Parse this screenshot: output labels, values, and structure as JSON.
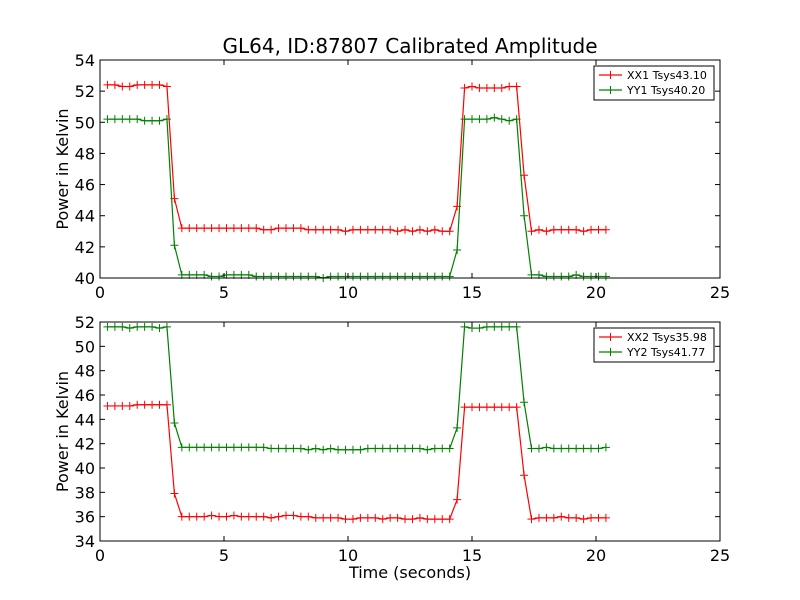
{
  "figure": {
    "title": "GL64, ID:87807 Calibrated Amplitude",
    "xlabel": "Time (seconds)"
  },
  "chart_data": [
    {
      "type": "line",
      "ylabel": "Power in Kelvin",
      "xlim": [
        0,
        25
      ],
      "ylim": [
        40,
        54
      ],
      "xticks": [
        0,
        5,
        10,
        15,
        20,
        25
      ],
      "yticks": [
        40,
        42,
        44,
        46,
        48,
        50,
        52,
        54
      ],
      "legend_placement": "top-right",
      "series": [
        {
          "name": "XX1 Tsys43.10",
          "color": "#ff0000",
          "x": [
            0.3,
            0.6,
            0.9,
            1.2,
            1.5,
            1.8,
            2.1,
            2.4,
            2.7,
            3.0,
            3.3,
            3.6,
            3.9,
            4.2,
            4.5,
            4.8,
            5.1,
            5.4,
            5.7,
            6.0,
            6.3,
            6.6,
            6.9,
            7.2,
            7.5,
            7.8,
            8.1,
            8.4,
            8.7,
            9.0,
            9.3,
            9.6,
            9.9,
            10.2,
            10.5,
            10.8,
            11.1,
            11.4,
            11.7,
            12.0,
            12.3,
            12.6,
            12.9,
            13.2,
            13.5,
            13.8,
            14.1,
            14.4,
            14.7,
            15.0,
            15.3,
            15.6,
            15.9,
            16.2,
            16.5,
            16.8,
            17.1,
            17.4,
            17.7,
            18.0,
            18.3,
            18.6,
            18.9,
            19.2,
            19.5,
            19.8,
            20.1,
            20.4
          ],
          "y": [
            52.4,
            52.4,
            52.3,
            52.3,
            52.4,
            52.4,
            52.4,
            52.4,
            52.3,
            45.1,
            43.2,
            43.2,
            43.2,
            43.2,
            43.2,
            43.2,
            43.2,
            43.2,
            43.2,
            43.2,
            43.2,
            43.1,
            43.1,
            43.2,
            43.2,
            43.2,
            43.2,
            43.1,
            43.1,
            43.1,
            43.1,
            43.1,
            43.0,
            43.1,
            43.1,
            43.1,
            43.1,
            43.1,
            43.1,
            43.0,
            43.1,
            43.0,
            43.1,
            43.0,
            43.1,
            43.0,
            43.0,
            44.6,
            52.2,
            52.3,
            52.2,
            52.2,
            52.2,
            52.2,
            52.3,
            52.3,
            46.6,
            43.0,
            43.1,
            43.0,
            43.1,
            43.1,
            43.1,
            43.1,
            43.0,
            43.1,
            43.1,
            43.1
          ]
        },
        {
          "name": "YY1 Tsys40.20",
          "color": "#008000",
          "x": [
            0.3,
            0.6,
            0.9,
            1.2,
            1.5,
            1.8,
            2.1,
            2.4,
            2.7,
            3.0,
            3.3,
            3.6,
            3.9,
            4.2,
            4.5,
            4.8,
            5.1,
            5.4,
            5.7,
            6.0,
            6.3,
            6.6,
            6.9,
            7.2,
            7.5,
            7.8,
            8.1,
            8.4,
            8.7,
            9.0,
            9.3,
            9.6,
            9.9,
            10.2,
            10.5,
            10.8,
            11.1,
            11.4,
            11.7,
            12.0,
            12.3,
            12.6,
            12.9,
            13.2,
            13.5,
            13.8,
            14.1,
            14.4,
            14.7,
            15.0,
            15.3,
            15.6,
            15.9,
            16.2,
            16.5,
            16.8,
            17.1,
            17.4,
            17.7,
            18.0,
            18.3,
            18.6,
            18.9,
            19.2,
            19.5,
            19.8,
            20.1,
            20.4
          ],
          "y": [
            50.2,
            50.2,
            50.2,
            50.2,
            50.2,
            50.1,
            50.1,
            50.1,
            50.2,
            42.1,
            40.2,
            40.2,
            40.2,
            40.2,
            40.1,
            40.1,
            40.2,
            40.2,
            40.2,
            40.2,
            40.1,
            40.1,
            40.1,
            40.1,
            40.1,
            40.1,
            40.1,
            40.1,
            40.1,
            40.0,
            40.1,
            40.1,
            40.1,
            40.1,
            40.1,
            40.1,
            40.1,
            40.1,
            40.1,
            40.1,
            40.1,
            40.1,
            40.1,
            40.1,
            40.1,
            40.1,
            40.1,
            41.8,
            50.2,
            50.2,
            50.2,
            50.2,
            50.3,
            50.2,
            50.1,
            50.2,
            44.0,
            40.2,
            40.2,
            40.1,
            40.1,
            40.1,
            40.1,
            40.2,
            40.1,
            40.1,
            40.1,
            40.1
          ]
        }
      ]
    },
    {
      "type": "line",
      "ylabel": "Power in Kelvin",
      "xlim": [
        0,
        25
      ],
      "ylim": [
        34,
        52
      ],
      "xticks": [
        0,
        5,
        10,
        15,
        20,
        25
      ],
      "yticks": [
        34,
        36,
        38,
        40,
        42,
        44,
        46,
        48,
        50,
        52
      ],
      "legend_placement": "top-right",
      "series": [
        {
          "name": "XX2 Tsys35.98",
          "color": "#ff0000",
          "x": [
            0.3,
            0.6,
            0.9,
            1.2,
            1.5,
            1.8,
            2.1,
            2.4,
            2.7,
            3.0,
            3.3,
            3.6,
            3.9,
            4.2,
            4.5,
            4.8,
            5.1,
            5.4,
            5.7,
            6.0,
            6.3,
            6.6,
            6.9,
            7.2,
            7.5,
            7.8,
            8.1,
            8.4,
            8.7,
            9.0,
            9.3,
            9.6,
            9.9,
            10.2,
            10.5,
            10.8,
            11.1,
            11.4,
            11.7,
            12.0,
            12.3,
            12.6,
            12.9,
            13.2,
            13.5,
            13.8,
            14.1,
            14.4,
            14.7,
            15.0,
            15.3,
            15.6,
            15.9,
            16.2,
            16.5,
            16.8,
            17.1,
            17.4,
            17.7,
            18.0,
            18.3,
            18.6,
            18.9,
            19.2,
            19.5,
            19.8,
            20.1,
            20.4
          ],
          "y": [
            45.1,
            45.1,
            45.1,
            45.1,
            45.2,
            45.2,
            45.2,
            45.2,
            45.2,
            37.9,
            36.0,
            36.0,
            36.0,
            36.0,
            36.1,
            36.0,
            36.0,
            36.1,
            36.0,
            36.0,
            36.0,
            36.0,
            35.9,
            36.0,
            36.1,
            36.1,
            36.0,
            36.0,
            35.9,
            35.9,
            35.9,
            35.9,
            35.8,
            35.8,
            35.9,
            35.9,
            35.9,
            35.8,
            35.9,
            35.9,
            35.8,
            35.8,
            35.9,
            35.8,
            35.8,
            35.8,
            35.8,
            37.4,
            45.0,
            45.0,
            45.0,
            45.0,
            45.0,
            45.0,
            45.0,
            45.0,
            39.4,
            35.8,
            35.9,
            35.9,
            35.9,
            36.0,
            35.9,
            35.9,
            35.8,
            35.9,
            35.9,
            35.9
          ]
        },
        {
          "name": "YY2 Tsys41.77",
          "color": "#008000",
          "x": [
            0.3,
            0.6,
            0.9,
            1.2,
            1.5,
            1.8,
            2.1,
            2.4,
            2.7,
            3.0,
            3.3,
            3.6,
            3.9,
            4.2,
            4.5,
            4.8,
            5.1,
            5.4,
            5.7,
            6.0,
            6.3,
            6.6,
            6.9,
            7.2,
            7.5,
            7.8,
            8.1,
            8.4,
            8.7,
            9.0,
            9.3,
            9.6,
            9.9,
            10.2,
            10.5,
            10.8,
            11.1,
            11.4,
            11.7,
            12.0,
            12.3,
            12.6,
            12.9,
            13.2,
            13.5,
            13.8,
            14.1,
            14.4,
            14.7,
            15.0,
            15.3,
            15.6,
            15.9,
            16.2,
            16.5,
            16.8,
            17.1,
            17.4,
            17.7,
            18.0,
            18.3,
            18.6,
            18.9,
            19.2,
            19.5,
            19.8,
            20.1,
            20.4
          ],
          "y": [
            51.6,
            51.6,
            51.6,
            51.5,
            51.6,
            51.6,
            51.6,
            51.5,
            51.6,
            43.7,
            41.7,
            41.7,
            41.7,
            41.7,
            41.7,
            41.7,
            41.7,
            41.7,
            41.7,
            41.7,
            41.7,
            41.7,
            41.6,
            41.6,
            41.6,
            41.6,
            41.6,
            41.5,
            41.6,
            41.5,
            41.6,
            41.5,
            41.5,
            41.5,
            41.5,
            41.6,
            41.6,
            41.6,
            41.6,
            41.6,
            41.6,
            41.6,
            41.6,
            41.5,
            41.6,
            41.6,
            41.6,
            43.3,
            51.6,
            51.5,
            51.5,
            51.6,
            51.6,
            51.6,
            51.6,
            51.6,
            45.4,
            41.6,
            41.6,
            41.7,
            41.6,
            41.6,
            41.6,
            41.6,
            41.6,
            41.6,
            41.6,
            41.7
          ]
        }
      ]
    }
  ]
}
